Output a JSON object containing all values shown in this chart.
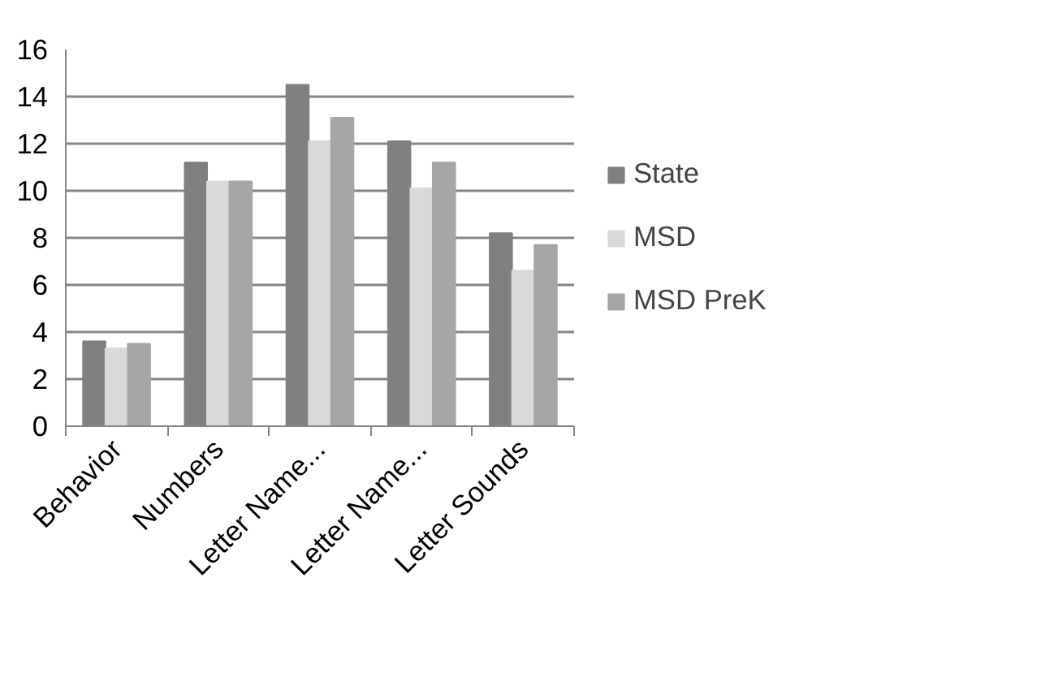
{
  "chart_data": {
    "type": "bar",
    "categories": [
      "Behavior",
      "Numbers",
      "Letter Name...",
      "Letter Name...",
      "Letter Sounds"
    ],
    "series": [
      {
        "name": "State",
        "color": "#808080",
        "values": [
          3.6,
          11.2,
          14.5,
          12.1,
          8.2
        ]
      },
      {
        "name": "MSD",
        "color": "#d9d9d9",
        "values": [
          3.3,
          10.4,
          12.1,
          10.1,
          6.6
        ]
      },
      {
        "name": "MSD PreK",
        "color": "#a6a6a6",
        "values": [
          3.5,
          10.4,
          13.1,
          11.2,
          7.7
        ]
      }
    ],
    "ylim": [
      0,
      16
    ],
    "yticks": [
      0,
      2,
      4,
      6,
      8,
      10,
      12,
      14,
      16
    ],
    "grid": "y",
    "legend": "right"
  }
}
